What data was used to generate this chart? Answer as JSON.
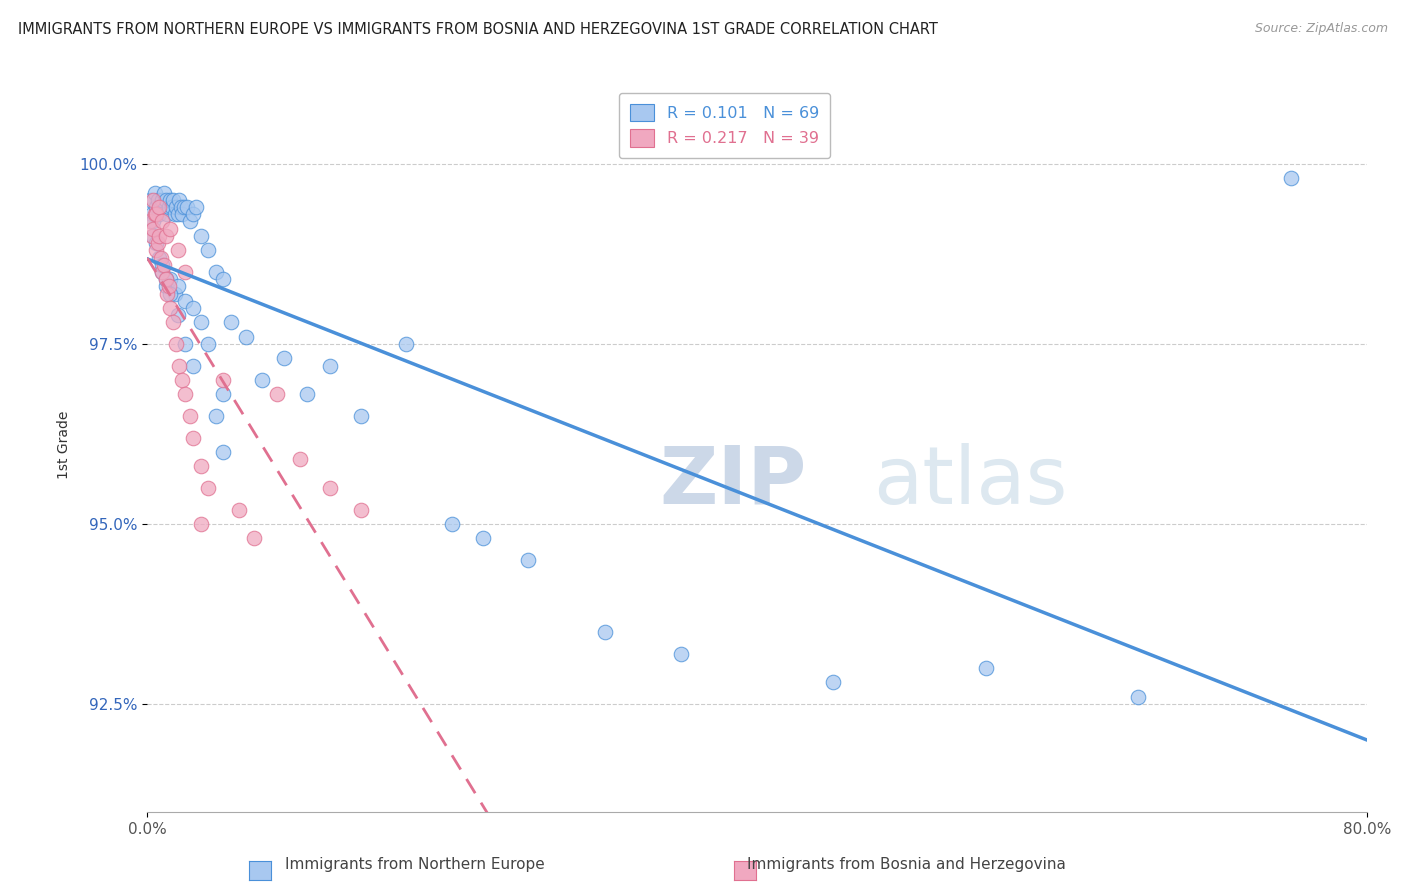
{
  "title": "IMMIGRANTS FROM NORTHERN EUROPE VS IMMIGRANTS FROM BOSNIA AND HERZEGOVINA 1ST GRADE CORRELATION CHART",
  "source": "Source: ZipAtlas.com",
  "ylabel": "1st Grade",
  "xlim": [
    0.0,
    80.0
  ],
  "ylim": [
    91.0,
    101.2
  ],
  "yticks": [
    92.5,
    95.0,
    97.5,
    100.0
  ],
  "ytick_labels": [
    "92.5%",
    "95.0%",
    "97.5%",
    "100.0%"
  ],
  "xticks": [
    0.0,
    80.0
  ],
  "xtick_labels": [
    "0.0%",
    "80.0%"
  ],
  "legend_r1": "R = 0.101",
  "legend_n1": "N = 69",
  "legend_r2": "R = 0.217",
  "legend_n2": "N = 39",
  "series1_color": "#a8c8f0",
  "series2_color": "#f0a8c0",
  "trend1_color": "#4a90d9",
  "trend2_color": "#e07090",
  "watermark_zip": "ZIP",
  "watermark_atlas": "atlas",
  "blue_x": [
    0.2,
    0.3,
    0.4,
    0.5,
    0.6,
    0.7,
    0.8,
    0.9,
    1.0,
    1.1,
    1.2,
    1.3,
    1.4,
    1.5,
    1.6,
    1.7,
    1.8,
    1.9,
    2.0,
    2.1,
    2.2,
    2.3,
    2.4,
    2.6,
    2.8,
    3.0,
    3.2,
    3.5,
    4.0,
    4.5,
    5.0,
    5.5,
    6.5,
    7.5,
    9.0,
    10.5,
    12.0,
    14.0,
    17.0,
    20.0,
    22.0,
    25.0,
    30.0,
    35.0,
    45.0,
    55.0,
    65.0,
    75.0,
    1.0,
    1.2,
    1.5,
    1.8,
    2.0,
    2.5,
    3.0,
    3.5,
    4.0,
    4.5,
    5.0,
    0.4,
    0.6,
    0.8,
    1.0,
    1.2,
    1.5,
    2.0,
    2.5,
    3.0,
    5.0
  ],
  "blue_y": [
    99.5,
    99.3,
    99.2,
    99.6,
    99.4,
    99.5,
    99.3,
    99.4,
    99.5,
    99.6,
    99.5,
    99.3,
    99.4,
    99.5,
    99.4,
    99.5,
    99.3,
    99.4,
    99.3,
    99.5,
    99.4,
    99.3,
    99.4,
    99.4,
    99.2,
    99.3,
    99.4,
    99.0,
    98.8,
    98.5,
    98.4,
    97.8,
    97.6,
    97.0,
    97.3,
    96.8,
    97.2,
    96.5,
    97.5,
    95.0,
    94.8,
    94.5,
    93.5,
    93.2,
    92.8,
    93.0,
    92.6,
    99.8,
    98.5,
    98.3,
    98.4,
    98.2,
    98.3,
    98.1,
    98.0,
    97.8,
    97.5,
    96.5,
    96.0,
    99.0,
    98.9,
    98.7,
    98.6,
    98.4,
    98.2,
    97.9,
    97.5,
    97.2,
    96.8
  ],
  "pink_x": [
    0.2,
    0.3,
    0.4,
    0.5,
    0.6,
    0.7,
    0.8,
    0.9,
    1.0,
    1.1,
    1.2,
    1.3,
    1.4,
    1.5,
    1.7,
    1.9,
    2.1,
    2.3,
    2.5,
    2.8,
    3.0,
    3.5,
    4.0,
    5.0,
    6.0,
    7.0,
    8.5,
    10.0,
    12.0,
    14.0,
    0.4,
    0.6,
    0.8,
    1.0,
    1.2,
    1.5,
    2.0,
    2.5,
    3.5
  ],
  "pink_y": [
    99.2,
    99.0,
    99.1,
    99.3,
    98.8,
    98.9,
    99.0,
    98.7,
    98.5,
    98.6,
    98.4,
    98.2,
    98.3,
    98.0,
    97.8,
    97.5,
    97.2,
    97.0,
    96.8,
    96.5,
    96.2,
    95.8,
    95.5,
    97.0,
    95.2,
    94.8,
    96.8,
    95.9,
    95.5,
    95.2,
    99.5,
    99.3,
    99.4,
    99.2,
    99.0,
    99.1,
    98.8,
    98.5,
    95.0
  ]
}
